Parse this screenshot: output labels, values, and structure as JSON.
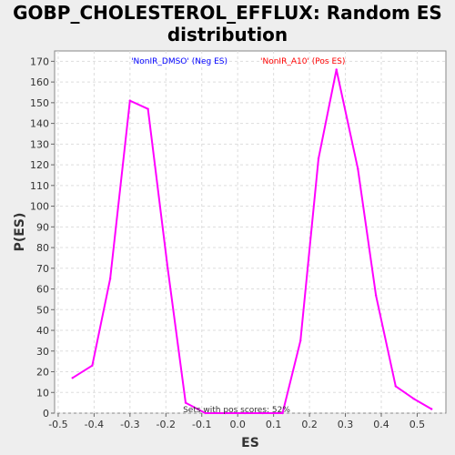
{
  "chart_data": {
    "type": "line",
    "title_line1": "GOBP_CHOLESTEROL_EFFLUX: Random ES",
    "title_line2": "distribution",
    "xlabel": "ES",
    "ylabel": "P(ES)",
    "xlim": [
      -0.51,
      0.58
    ],
    "ylim": [
      0,
      175
    ],
    "x_ticks": [
      -0.5,
      -0.4,
      -0.3,
      -0.2,
      -0.1,
      0.0,
      0.1,
      0.2,
      0.3,
      0.4,
      0.5
    ],
    "x_tick_labels": [
      "-0.5",
      "-0.4",
      "-0.3",
      "-0.2",
      "-0.1",
      "0.0",
      "0.1",
      "0.2",
      "0.3",
      "0.4",
      "0.5"
    ],
    "y_ticks": [
      0,
      10,
      20,
      30,
      40,
      50,
      60,
      70,
      80,
      90,
      100,
      110,
      120,
      130,
      140,
      150,
      160,
      170
    ],
    "grid": true,
    "legend": [
      {
        "label": "'NonIR_DMSO' (Neg ES)",
        "color": "#0000ff"
      },
      {
        "label": "'NonIR_A10' (Pos ES)",
        "color": "#ff0000"
      }
    ],
    "annotation": "Sets with pos scores: 52%",
    "line_color": "#ff00ff",
    "series": [
      {
        "x": [
          -0.46,
          -0.405,
          -0.355,
          -0.3,
          -0.25,
          -0.195,
          -0.145,
          -0.09,
          -0.035,
          0.02,
          0.07,
          0.125,
          0.175,
          0.225,
          0.275,
          0.335,
          0.385,
          0.44,
          0.49,
          0.54
        ],
        "values": [
          17,
          23,
          65,
          151,
          147,
          70,
          5,
          0,
          0,
          0,
          0,
          0,
          35,
          123,
          166,
          118,
          57,
          13,
          7,
          2
        ]
      }
    ]
  }
}
